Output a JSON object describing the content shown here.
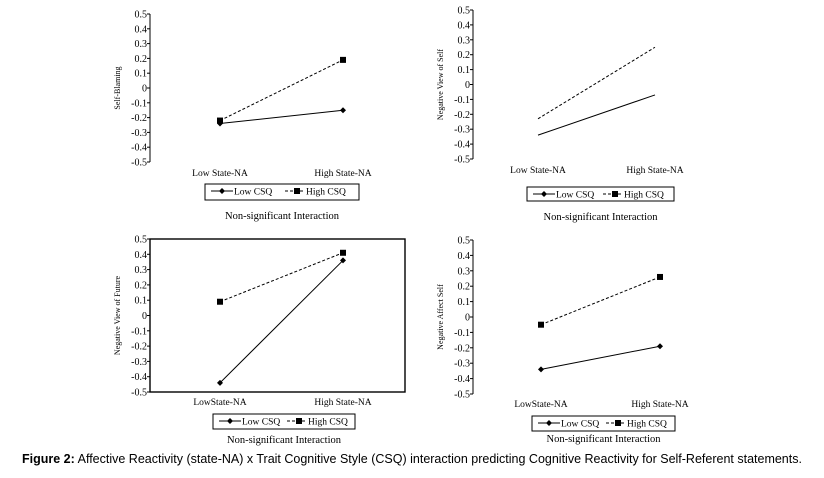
{
  "caption": {
    "label": "Figure 2:",
    "text": "Affective Reactivity (state-NA) x Trait Cognitive Style (CSQ) interaction predicting Cognitive Reactivity for Self-Referent statements."
  },
  "colors": {
    "line": "#000000",
    "background": "#ffffff"
  },
  "chart_data": [
    {
      "type": "line",
      "ylabel": "Self-Blaming",
      "categories": [
        "Low State-NA",
        "High State-NA"
      ],
      "ylim": [
        -0.5,
        0.5
      ],
      "yticks": [
        "0.5",
        "0.4",
        "0.3",
        "0.2",
        "0.1",
        "0",
        "-0.1",
        "-0.2",
        "-0.3",
        "-0.4",
        "-0.5"
      ],
      "series": [
        {
          "name": "Low CSQ",
          "values": [
            -0.24,
            -0.15
          ],
          "style": "solid",
          "marker": "diamond"
        },
        {
          "name": "High CSQ",
          "values": [
            -0.22,
            0.19
          ],
          "style": "dashed",
          "marker": "square"
        }
      ],
      "legend": [
        "Low CSQ",
        "High CSQ"
      ],
      "note": "Non-significant Interaction"
    },
    {
      "type": "line",
      "ylabel": "Negative View of Self",
      "categories": [
        "Low State-NA",
        "High State-NA"
      ],
      "ylim": [
        -0.5,
        0.5
      ],
      "yticks": [
        "0.5",
        "0.4",
        "0.3",
        "0.2",
        "0.1",
        "0",
        "-0.1",
        "-0.2",
        "-0.3",
        "-0.4",
        "-0.5"
      ],
      "series": [
        {
          "name": "Low CSQ",
          "values": [
            -0.34,
            -0.07
          ],
          "style": "solid",
          "marker": "none"
        },
        {
          "name": "High CSQ",
          "values": [
            -0.23,
            0.25
          ],
          "style": "dashed",
          "marker": "none"
        }
      ],
      "legend": [
        "Low CSQ",
        "High CSQ"
      ],
      "note": "Non-significant Interaction"
    },
    {
      "type": "line",
      "ylabel": "Negative View of Future",
      "categories": [
        "LowState-NA",
        "High State-NA"
      ],
      "ylim": [
        -0.5,
        0.5
      ],
      "yticks": [
        "0.5",
        "0.4",
        "0.3",
        "0.2",
        "0.1",
        "0",
        "-0.1",
        "-0.2",
        "-0.3",
        "-0.4",
        "-0.5"
      ],
      "series": [
        {
          "name": "Low CSQ",
          "values": [
            -0.44,
            0.36
          ],
          "style": "solid",
          "marker": "diamond"
        },
        {
          "name": "High CSQ",
          "values": [
            0.09,
            0.41
          ],
          "style": "dashed",
          "marker": "square"
        }
      ],
      "legend": [
        "Low CSQ",
        "High CSQ"
      ],
      "note": "Non-significant Interaction"
    },
    {
      "type": "line",
      "ylabel": "Negative Affect Self",
      "categories": [
        "LowState-NA",
        "High State-NA"
      ],
      "ylim": [
        -0.5,
        0.5
      ],
      "yticks": [
        "0.5",
        "0.4",
        "0.3",
        "0.2",
        "0.1",
        "0",
        "-0.1",
        "-0.2",
        "-0.3",
        "-0.4",
        "-0.5"
      ],
      "series": [
        {
          "name": "Low CSQ",
          "values": [
            -0.34,
            -0.19
          ],
          "style": "solid",
          "marker": "diamond"
        },
        {
          "name": "High CSQ",
          "values": [
            -0.05,
            0.26
          ],
          "style": "dashed",
          "marker": "square"
        }
      ],
      "legend": [
        "Low CSQ",
        "High CSQ"
      ],
      "note": "Non-significant Interaction"
    }
  ]
}
